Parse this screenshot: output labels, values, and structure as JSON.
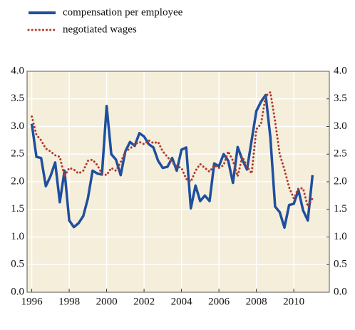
{
  "chart_data": {
    "type": "line",
    "x": [
      1996,
      1996.25,
      1996.5,
      1996.75,
      1997,
      1997.25,
      1997.5,
      1997.75,
      1998,
      1998.25,
      1998.5,
      1998.75,
      1999,
      1999.25,
      1999.5,
      1999.75,
      2000,
      2000.25,
      2000.5,
      2000.75,
      2001,
      2001.25,
      2001.5,
      2001.75,
      2002,
      2002.25,
      2002.5,
      2002.75,
      2003,
      2003.25,
      2003.5,
      2003.75,
      2004,
      2004.25,
      2004.5,
      2004.75,
      2005,
      2005.25,
      2005.5,
      2005.75,
      2006,
      2006.25,
      2006.5,
      2006.75,
      2007,
      2007.25,
      2007.5,
      2007.75,
      2008,
      2008.25,
      2008.5,
      2008.75,
      2009,
      2009.25,
      2009.5,
      2009.75,
      2010,
      2010.25,
      2010.5,
      2010.75,
      2011
    ],
    "series": [
      {
        "name": "compensation per employee",
        "color": "#1f4f9e",
        "style": "solid",
        "values": [
          3.05,
          2.45,
          2.43,
          1.92,
          2.1,
          2.35,
          1.63,
          2.2,
          1.3,
          1.18,
          1.25,
          1.38,
          1.7,
          2.2,
          2.15,
          2.13,
          3.37,
          2.5,
          2.4,
          2.12,
          2.55,
          2.72,
          2.65,
          2.88,
          2.82,
          2.68,
          2.62,
          2.38,
          2.25,
          2.27,
          2.43,
          2.2,
          2.58,
          2.62,
          1.52,
          1.93,
          1.65,
          1.75,
          1.65,
          2.33,
          2.28,
          2.5,
          2.38,
          1.98,
          2.63,
          2.4,
          2.22,
          2.75,
          3.28,
          3.45,
          3.57,
          2.8,
          1.55,
          1.45,
          1.17,
          1.58,
          1.6,
          1.85,
          1.48,
          1.3,
          2.12
        ]
      },
      {
        "name": "negotiated wages",
        "color": "#b03a2e",
        "style": "dotted",
        "values": [
          3.18,
          2.85,
          2.75,
          2.6,
          2.55,
          2.48,
          2.45,
          2.1,
          2.25,
          2.22,
          2.15,
          2.2,
          2.38,
          2.4,
          2.3,
          2.15,
          2.12,
          2.25,
          2.2,
          2.35,
          2.55,
          2.6,
          2.68,
          2.72,
          2.68,
          2.75,
          2.7,
          2.72,
          2.55,
          2.45,
          2.35,
          2.28,
          2.25,
          2.05,
          2.0,
          2.2,
          2.32,
          2.25,
          2.18,
          2.3,
          2.25,
          2.3,
          2.55,
          2.38,
          2.1,
          2.45,
          2.28,
          2.15,
          2.95,
          3.05,
          3.55,
          3.62,
          3.1,
          2.5,
          2.22,
          1.9,
          1.7,
          1.88,
          1.88,
          1.55,
          1.7
        ]
      }
    ],
    "xlim": [
      1995.75,
      2011.9
    ],
    "xticks": [
      1996,
      1998,
      2000,
      2002,
      2004,
      2006,
      2008,
      2010
    ],
    "ylim": [
      0,
      4
    ],
    "yticks": [
      {
        "value": 0,
        "label": "0.0"
      },
      0.5,
      {
        "value": 1,
        "label": "1.0"
      },
      1.5,
      {
        "value": 2,
        "label": "2.0"
      },
      2.5,
      {
        "value": 3,
        "label": "3.0"
      },
      3.5,
      {
        "value": 4,
        "label": "4.0"
      }
    ],
    "y2lim": [
      0,
      4
    ],
    "y2ticks": [
      {
        "value": 0,
        "label": "0.0"
      },
      0.5,
      {
        "value": 1,
        "label": "1.0"
      },
      1.5,
      {
        "value": 2,
        "label": "2.0"
      },
      2.5,
      {
        "value": 3,
        "label": "3.0"
      },
      3.5,
      {
        "value": 4,
        "label": "4.0"
      }
    ],
    "grid": true,
    "legend": "top-left",
    "background": "#f4eedb"
  }
}
